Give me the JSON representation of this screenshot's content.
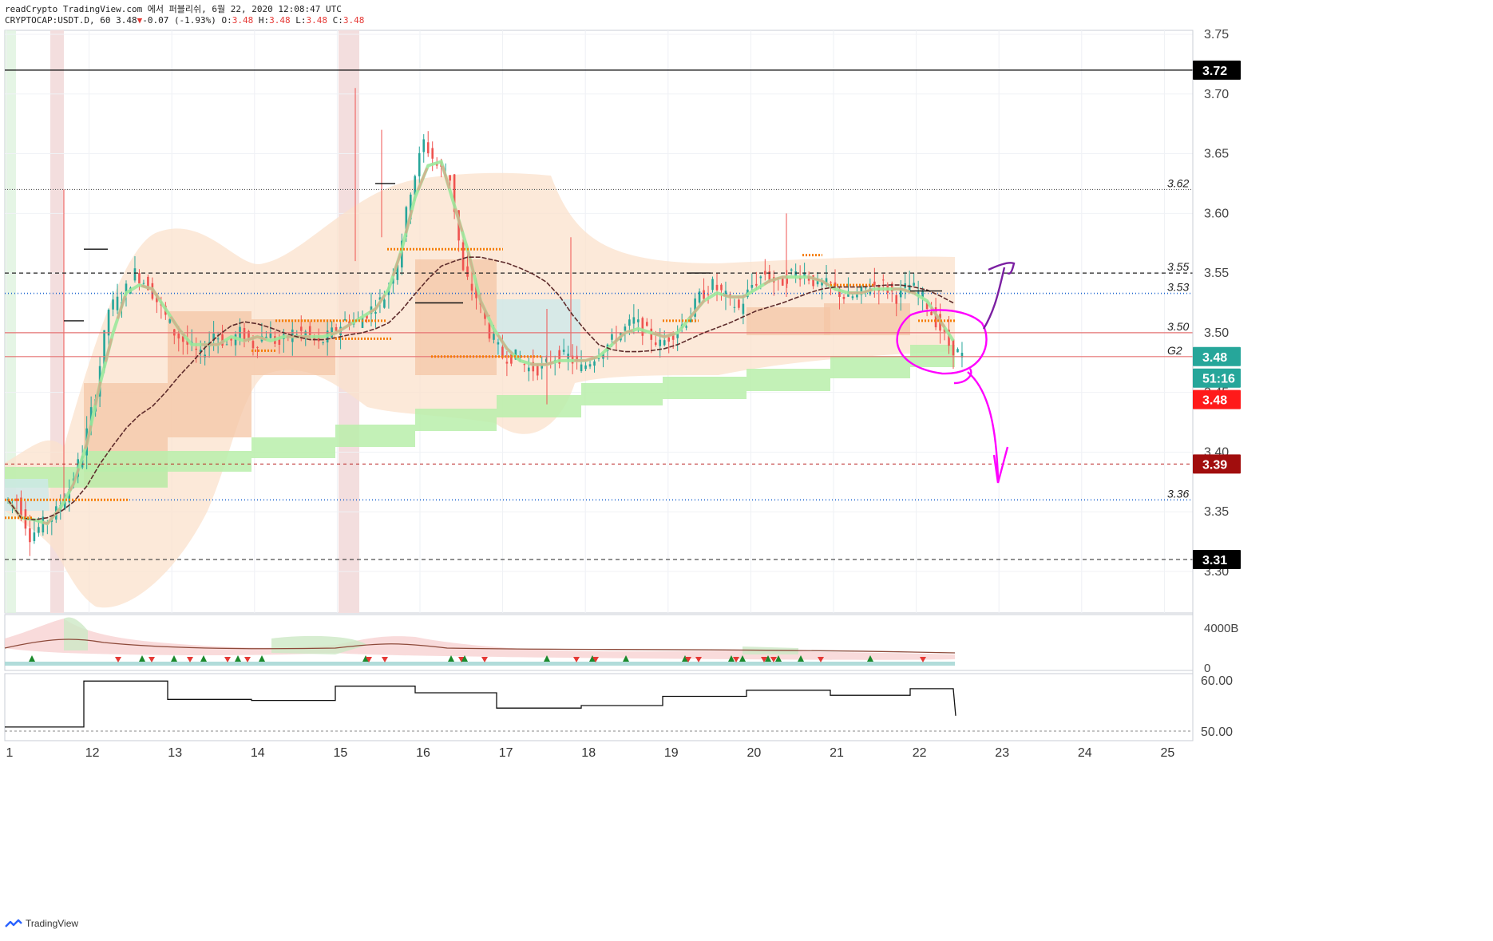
{
  "header": {
    "line1": "readCrypto TradingView.com 에서 퍼블리쉬, 6월 22, 2020 12:08:47 UTC",
    "symbol": "CRYPTOCAP:USDT.D, 60",
    "last": "3.48",
    "change_arrow": "▼",
    "change": "-0.07 (-1.93%)",
    "o_label": "O:",
    "o": "3.48",
    "h_label": "H:",
    "h": "3.48",
    "l_label": "L:",
    "l": "3.48",
    "c_label": "C:",
    "c": "3.48"
  },
  "footer": {
    "brand": "TradingView"
  },
  "colors": {
    "up": "#26a69a",
    "down": "#ef5350",
    "black_line": "#000000",
    "red_line": "#e57373",
    "blue_dots": "#1e66d0",
    "magenta": "#ff00ff",
    "green_band": "#b9efaa",
    "orange_cloud": "#fbe2cc",
    "orange_box": "#f4c6a5"
  },
  "chart_data": [
    {
      "type": "line",
      "pane": "price",
      "y_ticks": [
        "3.75",
        "3.70",
        "3.65",
        "3.60",
        "3.55",
        "3.50",
        "3.45",
        "3.40",
        "3.35",
        "3.30"
      ],
      "ylim": [
        3.27,
        3.75
      ],
      "x_ticks": [
        "1",
        "12",
        "13",
        "14",
        "15",
        "16",
        "17",
        "18",
        "19",
        "20",
        "21",
        "22",
        "23",
        "24",
        "25"
      ],
      "price_badges": [
        {
          "label": "3.72",
          "value": 3.72,
          "style": "black"
        },
        {
          "label": "3.48",
          "value": 3.48,
          "style": "teal"
        },
        {
          "label": "51:16",
          "value": 3.462,
          "style": "teal"
        },
        {
          "label": "3.48",
          "value": 3.444,
          "style": "red"
        },
        {
          "label": "3.39",
          "value": 3.39,
          "style": "darkred"
        },
        {
          "label": "3.31",
          "value": 3.31,
          "style": "black"
        }
      ],
      "level_labels": [
        {
          "label": "3.62",
          "value": 3.62
        },
        {
          "label": "3.55",
          "value": 3.55
        },
        {
          "label": "3.53",
          "value": 3.533
        },
        {
          "label": "3.50",
          "value": 3.5
        },
        {
          "label": "G2",
          "value": 3.48
        },
        {
          "label": "3.36",
          "value": 3.36
        }
      ],
      "close_series": [
        3.36,
        3.33,
        3.34,
        3.35,
        3.37,
        3.4,
        3.45,
        3.52,
        3.53,
        3.55,
        3.54,
        3.52,
        3.5,
        3.49,
        3.48,
        3.5,
        3.49,
        3.5,
        3.49,
        3.5,
        3.49,
        3.5,
        3.5,
        3.49,
        3.5,
        3.51,
        3.51,
        3.52,
        3.53,
        3.56,
        3.62,
        3.66,
        3.64,
        3.63,
        3.55,
        3.53,
        3.5,
        3.48,
        3.48,
        3.47,
        3.47,
        3.48,
        3.48,
        3.47,
        3.48,
        3.49,
        3.5,
        3.51,
        3.5,
        3.49,
        3.5,
        3.51,
        3.53,
        3.54,
        3.53,
        3.52,
        3.54,
        3.55,
        3.54,
        3.55,
        3.55,
        3.54,
        3.54,
        3.53,
        3.53,
        3.54,
        3.54,
        3.53,
        3.54,
        3.53,
        3.51,
        3.49,
        3.48
      ]
    },
    {
      "type": "area",
      "pane": "volume",
      "y_ticks": [
        "4000B",
        "0"
      ]
    },
    {
      "type": "line",
      "pane": "oscillator",
      "y_ticks": [
        "60.00",
        "50.00"
      ],
      "ylim": [
        49,
        61
      ],
      "x": [
        "11",
        "12",
        "13",
        "14",
        "15",
        "16",
        "17",
        "18",
        "19",
        "20",
        "21",
        "22"
      ],
      "values": [
        50.8,
        59.8,
        56.2,
        56.0,
        58.8,
        57.5,
        54.5,
        55.0,
        56.8,
        58.0,
        57.0,
        58.3
      ]
    }
  ]
}
